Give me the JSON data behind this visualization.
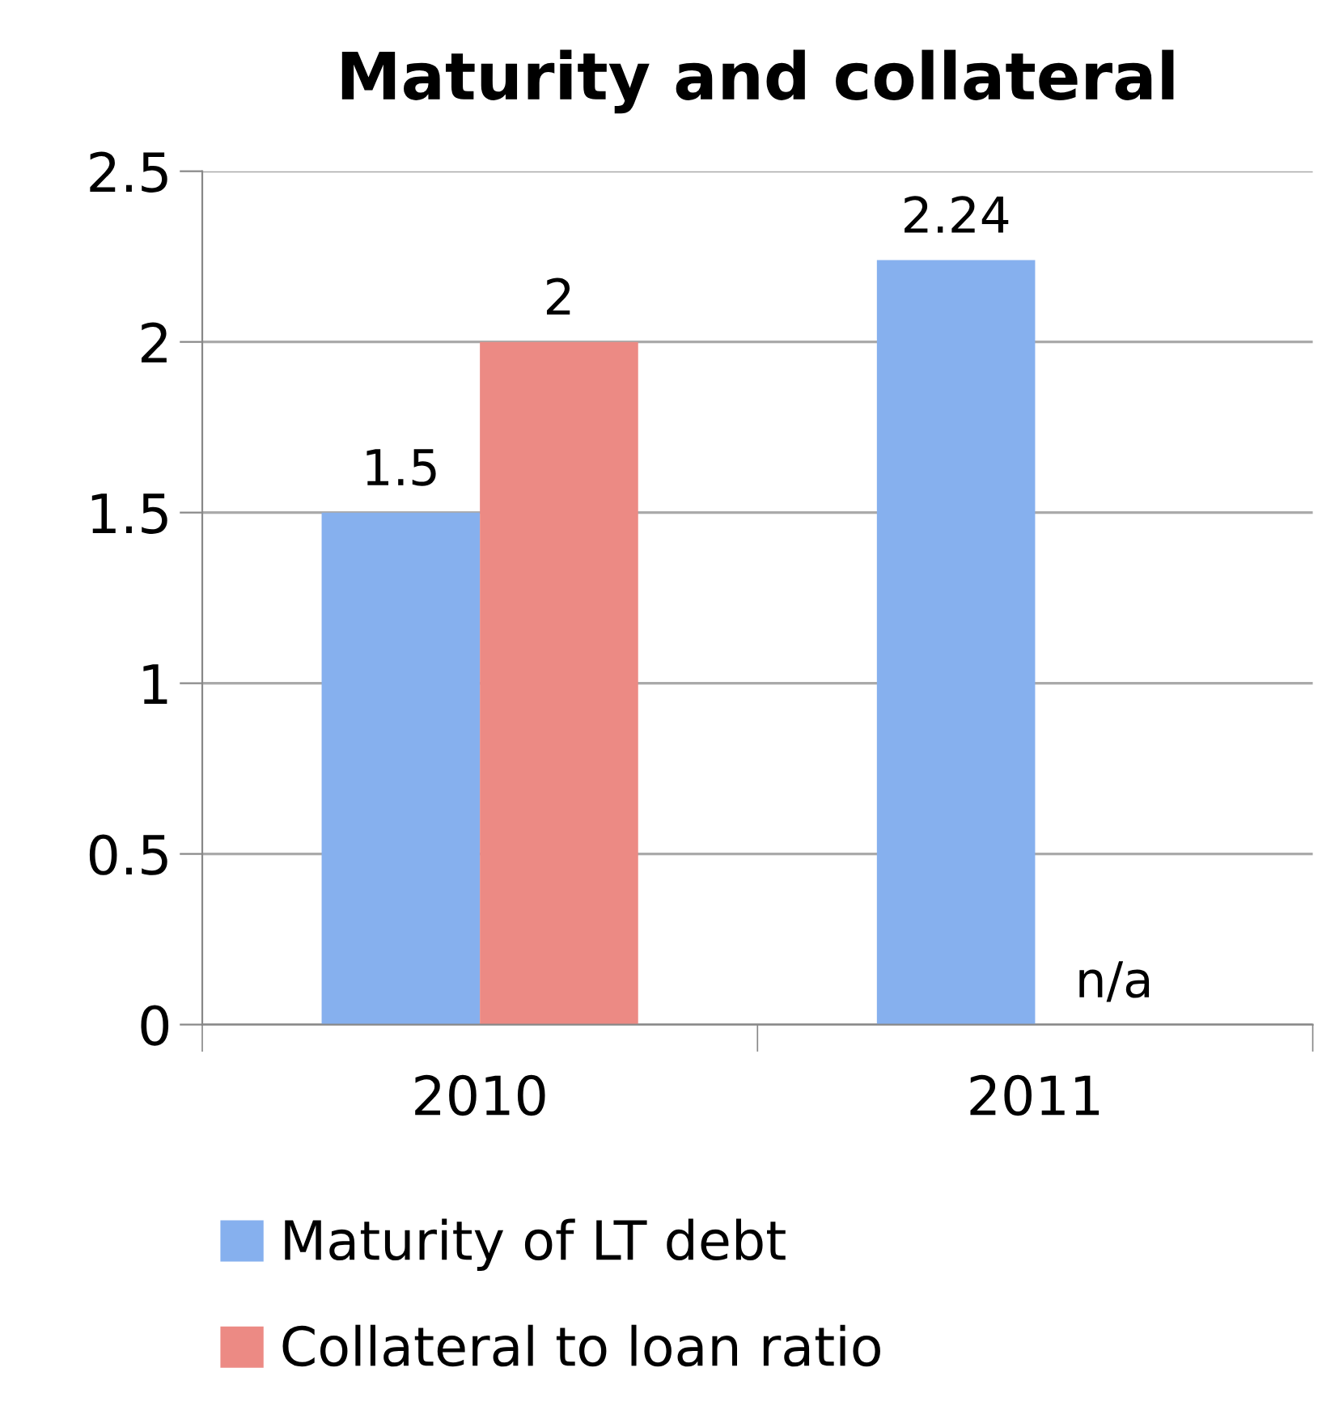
{
  "chart_data": {
    "type": "bar",
    "title": "Maturity and collateral",
    "categories": [
      "2010",
      "2011"
    ],
    "series": [
      {
        "name": "Maturity of LT debt",
        "color": "#86b0ee",
        "values": [
          1.5,
          2.24
        ],
        "value_labels": [
          "1.5",
          "2.24"
        ]
      },
      {
        "name": "Collateral to loan ratio",
        "color": "#ec8a84",
        "values": [
          2,
          null
        ],
        "value_labels": [
          "2",
          "n/a"
        ]
      }
    ],
    "ylim": [
      0,
      2.5
    ],
    "yticks": [
      0,
      0.5,
      1,
      1.5,
      2,
      2.5
    ],
    "grid": "y",
    "legend": "bottom"
  }
}
